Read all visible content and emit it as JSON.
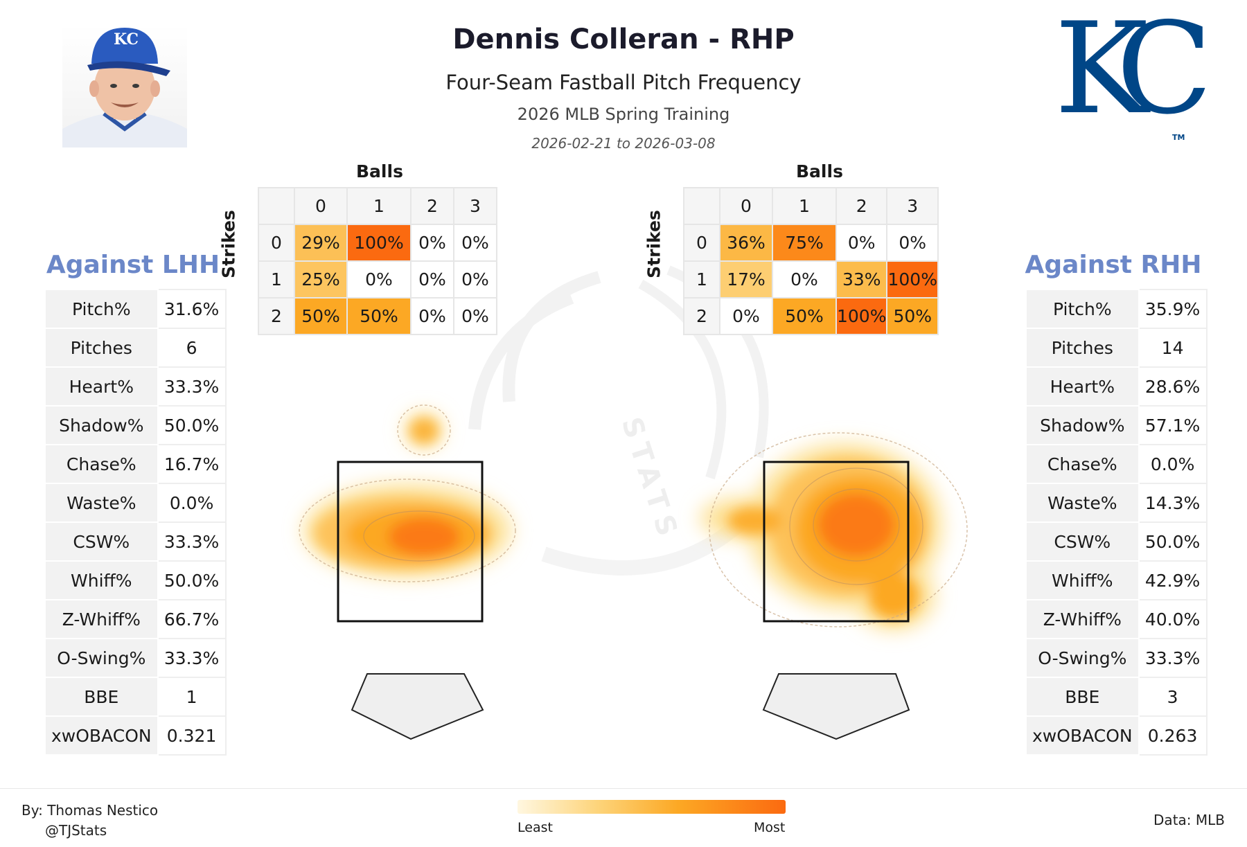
{
  "header": {
    "title": "Dennis Colleran - RHP",
    "subtitle": "Four-Seam Fastball Pitch Frequency",
    "season": "2026 MLB Spring Training",
    "dates": "2026-02-21 to 2026-03-08"
  },
  "logo": {
    "text": "KC",
    "tm": "TM",
    "color": "#004687"
  },
  "cap_logo_text": "KC",
  "watermark_text": "STATS",
  "colors": {
    "accent": "#6b87c8",
    "heat_low": "#fde29a",
    "heat_mid": "#fca824",
    "heat_high": "#fb6a10"
  },
  "lhh": {
    "title": "Against LHH",
    "stats": [
      {
        "label": "Pitch%",
        "value": "31.6%"
      },
      {
        "label": "Pitches",
        "value": "6"
      },
      {
        "label": "Heart%",
        "value": "33.3%"
      },
      {
        "label": "Shadow%",
        "value": "50.0%"
      },
      {
        "label": "Chase%",
        "value": "16.7%"
      },
      {
        "label": "Waste%",
        "value": "0.0%"
      },
      {
        "label": "CSW%",
        "value": "33.3%"
      },
      {
        "label": "Whiff%",
        "value": "50.0%"
      },
      {
        "label": "Z-Whiff%",
        "value": "66.7%"
      },
      {
        "label": "O-Swing%",
        "value": "33.3%"
      },
      {
        "label": "BBE",
        "value": "1"
      },
      {
        "label": "xwOBACON",
        "value": "0.321"
      }
    ]
  },
  "rhh": {
    "title": "Against RHH",
    "stats": [
      {
        "label": "Pitch%",
        "value": "35.9%"
      },
      {
        "label": "Pitches",
        "value": "14"
      },
      {
        "label": "Heart%",
        "value": "28.6%"
      },
      {
        "label": "Shadow%",
        "value": "57.1%"
      },
      {
        "label": "Chase%",
        "value": "0.0%"
      },
      {
        "label": "Waste%",
        "value": "14.3%"
      },
      {
        "label": "CSW%",
        "value": "50.0%"
      },
      {
        "label": "Whiff%",
        "value": "42.9%"
      },
      {
        "label": "Z-Whiff%",
        "value": "40.0%"
      },
      {
        "label": "O-Swing%",
        "value": "33.3%"
      },
      {
        "label": "BBE",
        "value": "3"
      },
      {
        "label": "xwOBACON",
        "value": "0.263"
      }
    ]
  },
  "chart_data": [
    {
      "type": "heatmap",
      "xlabel": "Balls",
      "ylabel": "Strikes",
      "x": [
        "0",
        "1",
        "2",
        "3"
      ],
      "y": [
        "0",
        "1",
        "2"
      ],
      "values": [
        [
          "29%",
          "100%",
          "0%",
          "0%"
        ],
        [
          "25%",
          "0%",
          "0%",
          "0%"
        ],
        [
          "50%",
          "50%",
          "0%",
          "0%"
        ]
      ]
    },
    {
      "type": "heatmap",
      "xlabel": "Balls",
      "ylabel": "Strikes",
      "x": [
        "0",
        "1",
        "2",
        "3"
      ],
      "y": [
        "0",
        "1",
        "2"
      ],
      "values": [
        [
          "36%",
          "75%",
          "0%",
          "0%"
        ],
        [
          "17%",
          "0%",
          "33%",
          "100%"
        ],
        [
          "0%",
          "50%",
          "100%",
          "50%"
        ]
      ]
    }
  ],
  "footer": {
    "by": "By: Thomas Nestico",
    "handle": "@TJStats",
    "data_source": "Data: MLB",
    "legend_least": "Least",
    "legend_most": "Most"
  }
}
